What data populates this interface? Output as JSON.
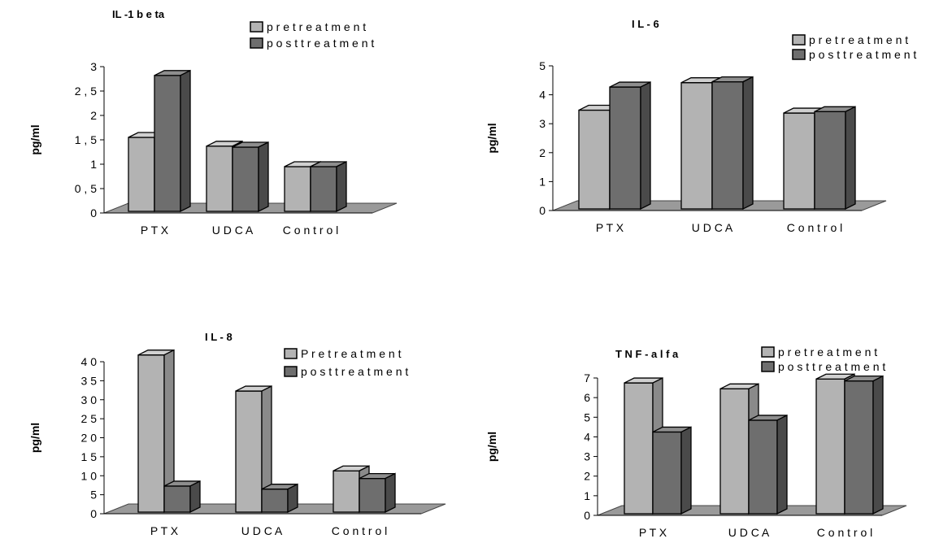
{
  "chart_data": [
    {
      "type": "bar",
      "title": "IL -1 b e ta",
      "ylabel": "pg/ml",
      "categories": [
        "P T X",
        "U D C A",
        "C o n t r o l"
      ],
      "yticks": [
        "0",
        "0 , 5",
        "1",
        "1 , 5",
        "2",
        "2 , 5",
        "3"
      ],
      "ylim": [
        0,
        3
      ],
      "legend_position": "top-right",
      "series": [
        {
          "name": "p r e t r e a t m e n t",
          "values": [
            1.45,
            1.27,
            0.85
          ],
          "color": "#b3b3b3"
        },
        {
          "name": "p o s t t r e a t m e n t",
          "values": [
            2.72,
            1.25,
            0.85
          ],
          "color": "#6e6e6e"
        }
      ]
    },
    {
      "type": "bar",
      "title": "I L - 6",
      "ylabel": "pg/ml",
      "categories": [
        "P T X",
        "U D C A",
        "C o n t r o l"
      ],
      "yticks": [
        "0",
        "1",
        "2",
        "3",
        "4",
        "5"
      ],
      "ylim": [
        0,
        5
      ],
      "legend_position": "top-right",
      "series": [
        {
          "name": "p r e t r e a t m e n t",
          "values": [
            3.3,
            4.25,
            3.2
          ],
          "color": "#b3b3b3"
        },
        {
          "name": "p o s t t r e a t m e n t",
          "values": [
            4.1,
            4.28,
            3.25
          ],
          "color": "#6e6e6e"
        }
      ]
    },
    {
      "type": "bar",
      "title": "I L - 8",
      "ylabel": "pg/ml",
      "categories": [
        "P T X",
        "U D C A",
        "C o n t r o l"
      ],
      "yticks": [
        "0",
        "5",
        "1 0",
        "1 5",
        "2 0",
        "2 5",
        "3 0",
        "3 5",
        "4 0"
      ],
      "ylim": [
        0,
        40
      ],
      "legend_position": "top-right",
      "series": [
        {
          "name": "P r e t r e a t m e n t",
          "values": [
            40.5,
            31,
            10
          ],
          "color": "#b3b3b3"
        },
        {
          "name": "p o s t t r e a t m e n t",
          "values": [
            6,
            5.2,
            8
          ],
          "color": "#6e6e6e"
        }
      ]
    },
    {
      "type": "bar",
      "title": "T N F - a l f a",
      "ylabel": "pg/ml",
      "categories": [
        "P T X",
        "U D C A",
        "C o n t r o l"
      ],
      "yticks": [
        "0",
        "1",
        "2",
        "3",
        "4",
        "5",
        "6",
        "7"
      ],
      "ylim": [
        0,
        7
      ],
      "legend_position": "top-right",
      "series": [
        {
          "name": "p r e t r e a t m e n t",
          "values": [
            6.5,
            6.2,
            6.7
          ],
          "color": "#b3b3b3"
        },
        {
          "name": "p o s t t r e a t m e n t",
          "values": [
            4,
            4.6,
            6.6
          ],
          "color": "#6e6e6e"
        }
      ]
    }
  ]
}
